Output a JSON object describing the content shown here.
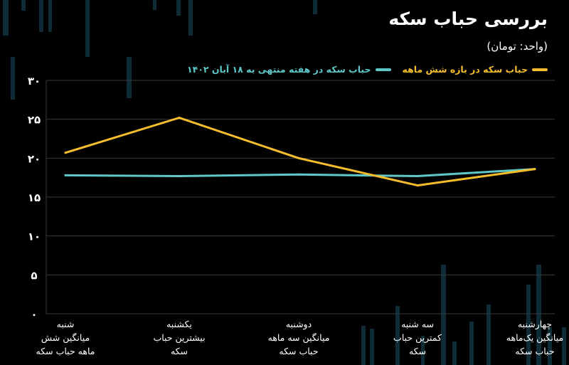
{
  "title": "بررسی  حباب سکه",
  "unit": "(واحد: تومان)",
  "colors": {
    "background": "#000000",
    "grid": "#3a3a3a",
    "series_6m": "#f5bd2c",
    "series_week": "#5ec8c8",
    "decor": "#0f2b36"
  },
  "chart_data": {
    "type": "line",
    "categories": [
      "شنبه\nمیانگین شش\nماهه حباب سکه",
      "یکشنبه\nبیشترین حباب\nسکه",
      "دوشنبه\nمیانگین سه ماهه\nحباب سکه",
      "سه شنبه\nکمترین حباب\nسکه",
      "چهارشنبه\nمیانگین یک‌ماهه\nحباب سکه"
    ],
    "series": [
      {
        "name": "حباب سکه در بازه شش ماهه",
        "color": "#f5bd2c",
        "values": [
          20.7,
          25.2,
          20.0,
          16.5,
          18.6
        ]
      },
      {
        "name": "حباب سکه در هفته منتهی به ۱۸ آبان ۱۴۰۲",
        "color": "#5ec8c8",
        "values": [
          17.8,
          17.7,
          17.9,
          17.7,
          18.6
        ]
      }
    ],
    "yticks": [
      "۰",
      "۵",
      "۱۰",
      "۱۵",
      "۲۰",
      "۲۵",
      "۳۰"
    ],
    "ylim": [
      0,
      30
    ],
    "grid": true,
    "legend": "top-right"
  }
}
